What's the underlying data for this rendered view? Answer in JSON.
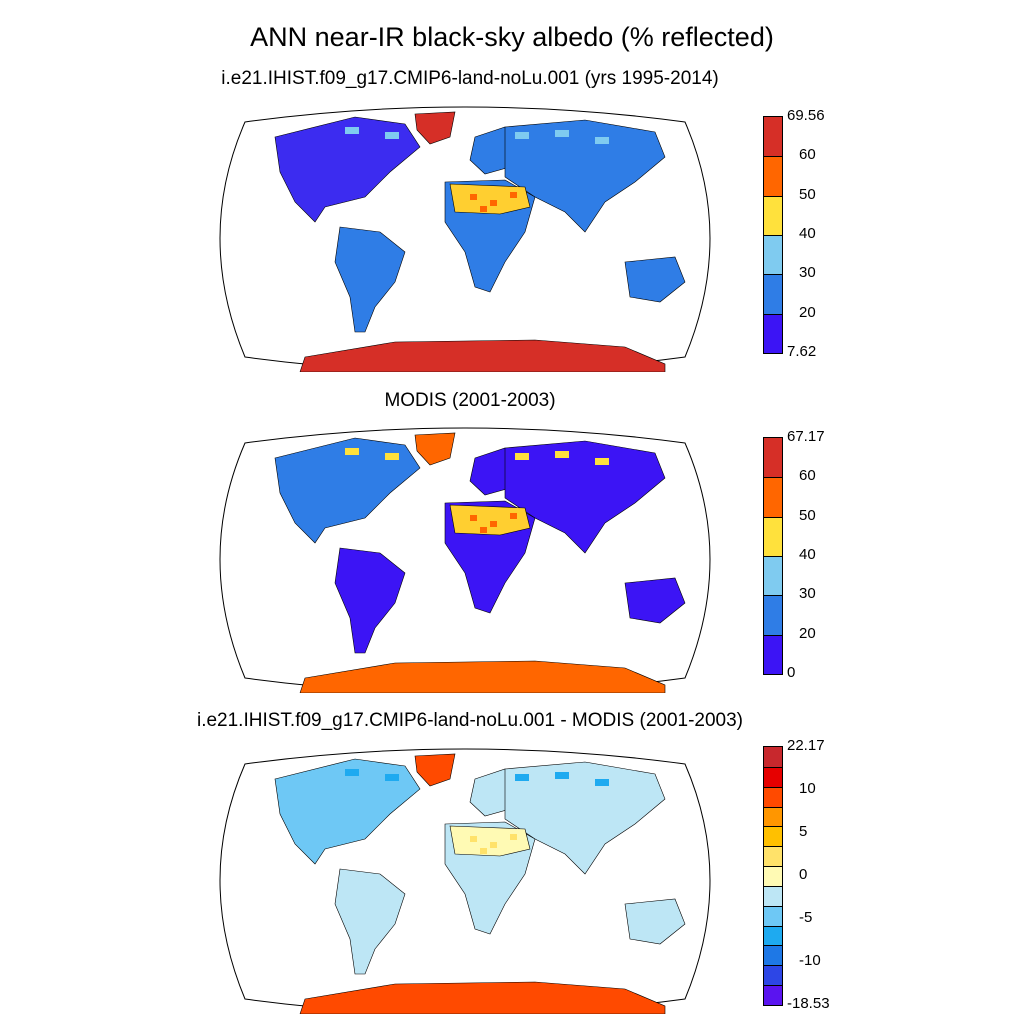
{
  "title": "ANN near-IR black-sky albedo (% reflected)",
  "panels": [
    {
      "subtitle": "i.e21.IHIST.f09_g17.CMIP6-land-noLu.001 (yrs 1995-2014)",
      "colorbar": {
        "colors": [
          "#d62f27",
          "#ff6600",
          "#ffe13c",
          "#7fcbf0",
          "#2f7de6",
          "#3c14f5"
        ],
        "labels": [
          "69.56",
          "60",
          "50",
          "40",
          "30",
          "20",
          "7.62"
        ]
      },
      "map_colors": {
        "land": "#3c2cf0",
        "land2": "#2f7de6",
        "desert": "#ffcf30",
        "desert_hot": "#ff6600",
        "ice": "#d62f27",
        "snow": "#7fcbf0"
      }
    },
    {
      "subtitle": "MODIS (2001-2003)",
      "colorbar": {
        "colors": [
          "#d62f27",
          "#ff6600",
          "#ffe13c",
          "#7fcbf0",
          "#2f7de6",
          "#3c14f5"
        ],
        "labels": [
          "67.17",
          "60",
          "50",
          "40",
          "30",
          "20",
          "0"
        ]
      },
      "map_colors": {
        "land": "#2f7de6",
        "land2": "#3c14f5",
        "desert": "#ffcf30",
        "desert_hot": "#ff6600",
        "ice": "#ff6600",
        "snow": "#ffe13c"
      }
    },
    {
      "subtitle": "i.e21.IHIST.f09_g17.CMIP6-land-noLu.001 - MODIS (2001-2003)",
      "colorbar": {
        "colors": [
          "#c8282d",
          "#e60000",
          "#ff4a00",
          "#ff9600",
          "#ffc000",
          "#ffe26a",
          "#fffab4",
          "#bde6f5",
          "#6ec8f5",
          "#1eaaf0",
          "#1e78e6",
          "#2d46e6",
          "#5a14f0"
        ],
        "labels": [
          "22.17",
          "10",
          "5",
          "0",
          "-5",
          "-10",
          "-18.53"
        ]
      },
      "map_colors": {
        "land": "#6ec8f5",
        "land2": "#bde6f5",
        "desert": "#fffab4",
        "desert_hot": "#ffe26a",
        "ice": "#ff4a00",
        "snow": "#1eaaf0"
      }
    }
  ]
}
